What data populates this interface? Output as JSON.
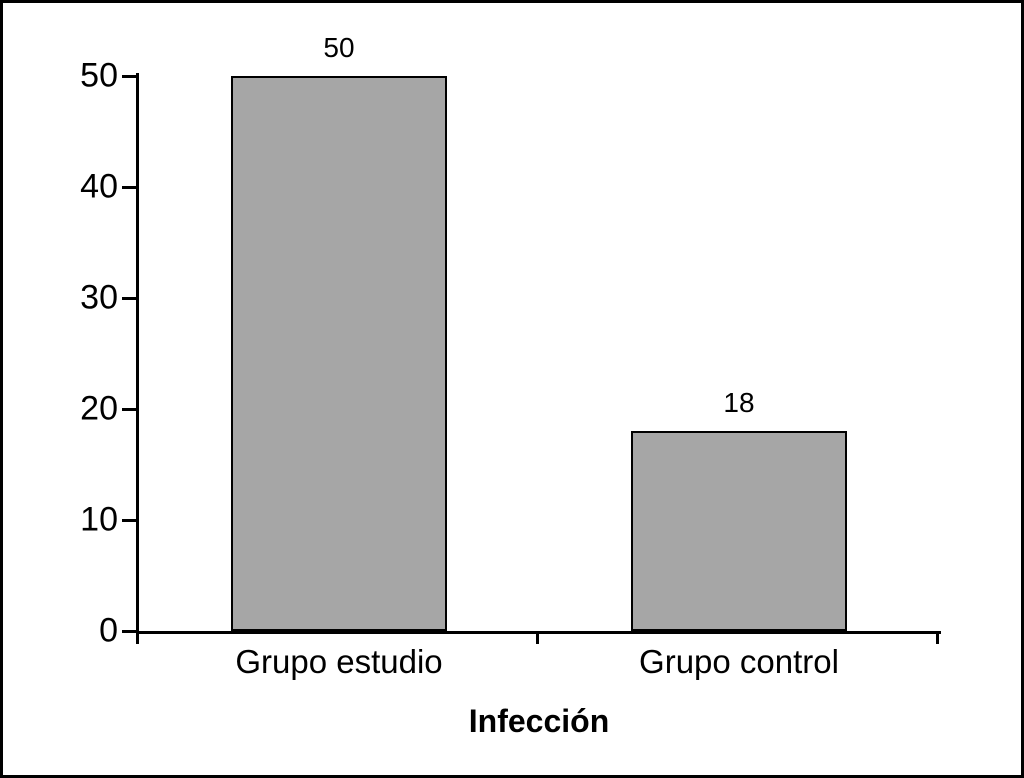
{
  "chart_data": {
    "type": "bar",
    "categories": [
      "Grupo estudio",
      "Grupo control"
    ],
    "values": [
      50,
      18
    ],
    "value_labels": [
      "50",
      "18"
    ],
    "title": "",
    "xlabel": "Infección",
    "ylabel": "",
    "ylim": [
      0,
      50
    ],
    "yticks": [
      0,
      10,
      20,
      30,
      40,
      50
    ],
    "grid": false,
    "legend_position": "none",
    "bar_color": "#a6a6a6",
    "bar_border_color": "#000000",
    "axis_color": "#000000",
    "background_color": "#ffffff"
  }
}
